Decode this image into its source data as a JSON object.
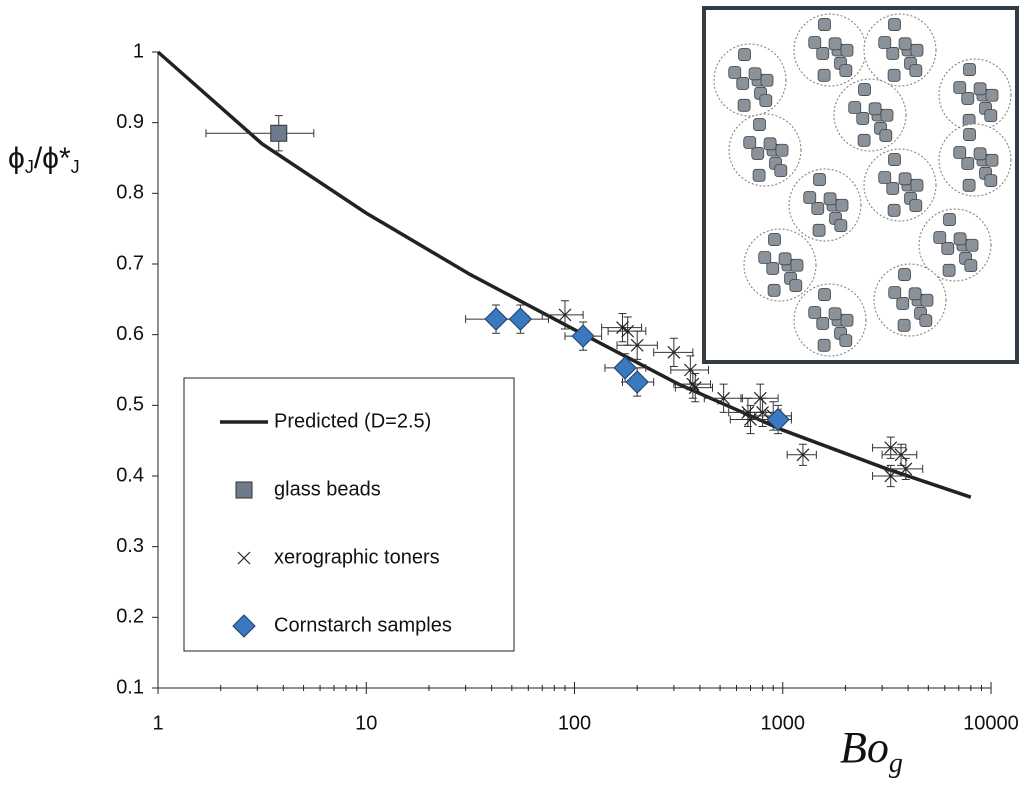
{
  "chart_data": {
    "type": "scatter",
    "y_label": [
      "ϕ",
      "J",
      "/ϕ*",
      "J"
    ],
    "x_label": [
      "Bo",
      "g"
    ],
    "xlog": true,
    "xlim": [
      1,
      10000
    ],
    "xticks": [
      1,
      10,
      100,
      1000,
      10000
    ],
    "ylim": [
      0.1,
      1
    ],
    "yticks": [
      0.1,
      0.2,
      0.3,
      0.4,
      0.5,
      0.6,
      0.7,
      0.8,
      0.9,
      1
    ],
    "legend": "lower left",
    "series": [
      {
        "name": "Predicted (D=2.5)",
        "kind": "line",
        "color": "#222222",
        "x": [
          1,
          3.16,
          10,
          31.6,
          100,
          316,
          1000,
          3162,
          8000
        ],
        "values": [
          1,
          0.87,
          0.772,
          0.685,
          0.607,
          0.53,
          0.465,
          0.41,
          0.37
        ]
      },
      {
        "name": "glass beads",
        "kind": "square",
        "color": "#6d7b8d",
        "x": [
          3.8
        ],
        "values": [
          0.885
        ],
        "yerr": [
          0.025
        ],
        "x_low": [
          1.7
        ],
        "x_high": [
          5.6
        ]
      },
      {
        "name": "xerographic toners",
        "kind": "cross",
        "color": "#222222",
        "x": [
          90,
          170,
          180,
          200,
          300,
          360,
          370,
          380,
          520,
          680,
          700,
          780,
          800,
          900,
          1250,
          3300,
          3300,
          3700,
          3900
        ],
        "values": [
          0.628,
          0.61,
          0.605,
          0.585,
          0.575,
          0.55,
          0.53,
          0.525,
          0.51,
          0.49,
          0.48,
          0.51,
          0.49,
          0.485,
          0.43,
          0.44,
          0.4,
          0.43,
          0.41
        ],
        "yerr": [
          0.02,
          0.02,
          0.02,
          0.02,
          0.02,
          0.02,
          0.02,
          0.02,
          0.02,
          0.02,
          0.02,
          0.02,
          0.02,
          0.02,
          0.015,
          0.015,
          0.015,
          0.015,
          0.015
        ],
        "x_low": [
          70,
          135,
          145,
          160,
          240,
          290,
          300,
          305,
          420,
          550,
          560,
          630,
          650,
          730,
          1050,
          2700,
          2700,
          3000,
          3200
        ],
        "x_high": [
          110,
          210,
          220,
          250,
          370,
          440,
          450,
          460,
          640,
          830,
          850,
          950,
          980,
          1100,
          1450,
          3900,
          3900,
          4400,
          4700
        ]
      },
      {
        "name": "Cornstarch samples",
        "kind": "diamond",
        "color": "#3a78c0",
        "x": [
          42,
          55,
          110,
          175,
          200,
          950
        ],
        "values": [
          0.622,
          0.622,
          0.598,
          0.553,
          0.533,
          0.48
        ],
        "yerr": [
          0.02,
          0.02,
          0.02,
          0.02,
          0.02,
          0.02
        ],
        "x_low": [
          30,
          45,
          90,
          140,
          170,
          800
        ],
        "x_high": [
          60,
          75,
          135,
          220,
          240,
          1100
        ]
      }
    ]
  }
}
